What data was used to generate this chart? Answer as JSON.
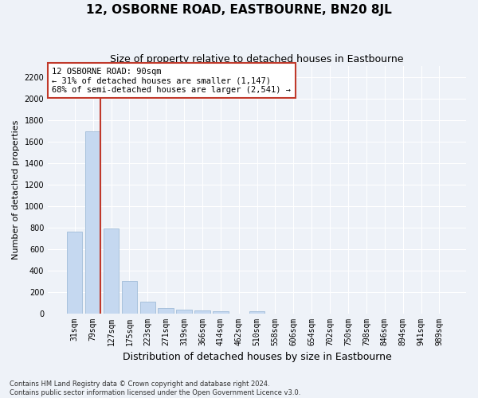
{
  "title": "12, OSBORNE ROAD, EASTBOURNE, BN20 8JL",
  "subtitle": "Size of property relative to detached houses in Eastbourne",
  "xlabel": "Distribution of detached houses by size in Eastbourne",
  "ylabel": "Number of detached properties",
  "categories": [
    "31sqm",
    "79sqm",
    "127sqm",
    "175sqm",
    "223sqm",
    "271sqm",
    "319sqm",
    "366sqm",
    "414sqm",
    "462sqm",
    "510sqm",
    "558sqm",
    "606sqm",
    "654sqm",
    "702sqm",
    "750sqm",
    "798sqm",
    "846sqm",
    "894sqm",
    "941sqm",
    "989sqm"
  ],
  "values": [
    760,
    1690,
    790,
    300,
    110,
    45,
    35,
    30,
    18,
    0,
    20,
    0,
    0,
    0,
    0,
    0,
    0,
    0,
    0,
    0,
    0
  ],
  "bar_color": "#c5d8f0",
  "bar_edge_color": "#a0bcd8",
  "vline_color": "#c0392b",
  "vline_x_index": 1,
  "annotation_text": "12 OSBORNE ROAD: 90sqm\n← 31% of detached houses are smaller (1,147)\n68% of semi-detached houses are larger (2,541) →",
  "annotation_box_color": "#ffffff",
  "annotation_box_edge_color": "#c0392b",
  "ylim": [
    0,
    2300
  ],
  "yticks": [
    0,
    200,
    400,
    600,
    800,
    1000,
    1200,
    1400,
    1600,
    1800,
    2000,
    2200
  ],
  "footnote": "Contains HM Land Registry data © Crown copyright and database right 2024.\nContains public sector information licensed under the Open Government Licence v3.0.",
  "bg_color": "#eef2f8",
  "grid_color": "#ffffff",
  "title_fontsize": 11,
  "subtitle_fontsize": 9,
  "ylabel_fontsize": 8,
  "xlabel_fontsize": 9,
  "tick_fontsize": 7,
  "annotation_fontsize": 7.5,
  "footnote_fontsize": 6
}
